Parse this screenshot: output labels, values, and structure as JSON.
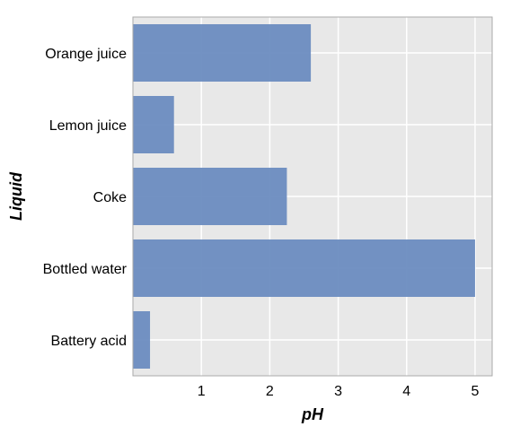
{
  "chart_data": {
    "type": "bar",
    "orientation": "horizontal",
    "categories": [
      "Orange juice",
      "Lemon juice",
      "Coke",
      "Bottled water",
      "Battery acid"
    ],
    "values": [
      2.6,
      0.6,
      2.25,
      5.0,
      0.25
    ],
    "xlabel": "pH",
    "ylabel": "Liquid",
    "xlim": [
      0,
      5.25
    ],
    "xticks": [
      1,
      2,
      3,
      4,
      5
    ],
    "grid": true,
    "colors": {
      "bar": "#6b8cc0",
      "plot_background": "#e8e8e8",
      "grid": "#ffffff",
      "frame": "#aaaaaa"
    }
  }
}
